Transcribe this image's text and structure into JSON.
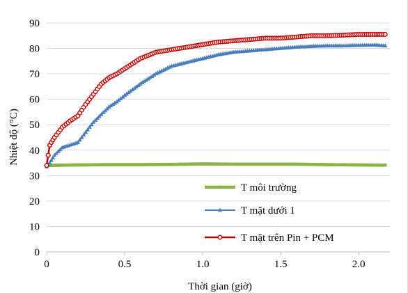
{
  "chart_data": {
    "type": "line",
    "xlabel": "Thời gian (giờ)",
    "ylabel": "Nhiệt độ (°C)",
    "xlim": [
      0,
      2.2
    ],
    "ylim": [
      0,
      90
    ],
    "x_ticks": [
      "0",
      "0.5",
      "1.0",
      "1.5",
      "2.0"
    ],
    "x_tick_values": [
      0,
      0.5,
      1.0,
      1.5,
      2.0
    ],
    "y_ticks": [
      "0",
      "10",
      "20",
      "30",
      "40",
      "50",
      "60",
      "70",
      "80",
      "90"
    ],
    "y_tick_values": [
      0,
      10,
      20,
      30,
      40,
      50,
      60,
      70,
      80,
      90
    ],
    "grid": "horizontal",
    "legend_position": "bottom-right",
    "series": [
      {
        "name": "T môi trường",
        "color": "#8ab544",
        "marker": "circle",
        "x": [
          0,
          0.2,
          0.4,
          0.6,
          0.8,
          1.0,
          1.2,
          1.4,
          1.6,
          1.8,
          2.0,
          2.17
        ],
        "y": [
          34.0,
          34.2,
          34.3,
          34.3,
          34.4,
          34.6,
          34.5,
          34.5,
          34.5,
          34.3,
          34.2,
          34.1
        ]
      },
      {
        "name": "T mặt dưới 1",
        "color": "#4a7ebb",
        "marker": "triangle",
        "x": [
          0,
          0.02,
          0.05,
          0.1,
          0.15,
          0.2,
          0.25,
          0.3,
          0.35,
          0.4,
          0.45,
          0.5,
          0.6,
          0.7,
          0.8,
          0.9,
          1.0,
          1.1,
          1.2,
          1.3,
          1.4,
          1.5,
          1.6,
          1.7,
          1.8,
          1.9,
          2.0,
          2.1,
          2.17
        ],
        "y": [
          33.5,
          35,
          38,
          41,
          42,
          43,
          47,
          51,
          54,
          57,
          59,
          61.5,
          66,
          70,
          73,
          74.5,
          76,
          77.5,
          78.5,
          79,
          79.5,
          80,
          80.5,
          80.8,
          81,
          81,
          81.2,
          81.3,
          81
        ]
      },
      {
        "name": "T mặt trên Pin + PCM",
        "color": "#c00000",
        "marker": "circle-open",
        "x": [
          0,
          0.02,
          0.05,
          0.1,
          0.15,
          0.2,
          0.25,
          0.3,
          0.35,
          0.4,
          0.45,
          0.5,
          0.6,
          0.7,
          0.8,
          0.9,
          1.0,
          1.1,
          1.2,
          1.3,
          1.4,
          1.5,
          1.6,
          1.7,
          1.8,
          1.9,
          2.0,
          2.1,
          2.17
        ],
        "y": [
          34,
          42,
          45,
          49,
          51.5,
          53.5,
          58,
          62,
          66,
          68.5,
          70,
          72,
          76,
          78.5,
          79.5,
          80.5,
          81.5,
          82.5,
          83,
          83.5,
          84,
          84,
          84.5,
          85,
          85,
          85.2,
          85.5,
          85.5,
          85.5
        ]
      }
    ]
  }
}
